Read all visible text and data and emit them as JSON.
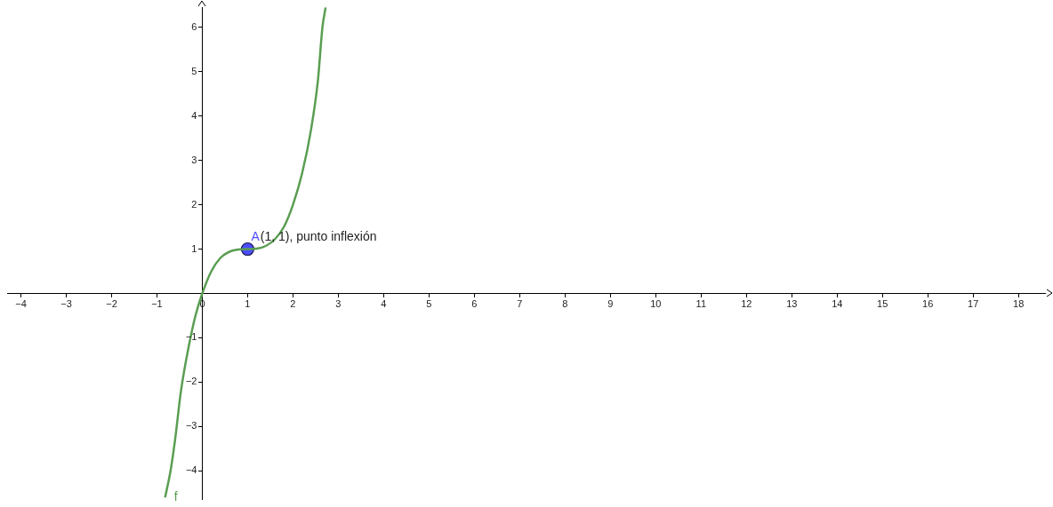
{
  "chart_data": {
    "type": "line",
    "xlim": [
      -4.3,
      18.6
    ],
    "ylim": [
      -4.65,
      6.45
    ],
    "xticks": [
      -4,
      -3,
      -2,
      -1,
      0,
      1,
      2,
      3,
      4,
      5,
      6,
      7,
      8,
      9,
      10,
      11,
      12,
      13,
      14,
      15,
      16,
      17,
      18
    ],
    "yticks": [
      -4,
      -3,
      -2,
      -1,
      1,
      2,
      3,
      4,
      5,
      6
    ],
    "grid": false,
    "legend": false,
    "marker": "none",
    "line_style": "solid",
    "series": [
      {
        "name": "f",
        "color": "#5a9e52",
        "x": [
          -0.82,
          -0.7,
          -0.6,
          -0.47,
          -0.3,
          -0.15,
          0,
          0.2,
          0.4,
          0.6,
          0.8,
          1,
          1.2,
          1.4,
          1.6,
          1.8,
          2,
          2.2,
          2.4,
          2.55,
          2.65,
          2.72
        ],
        "values": [
          -4.6,
          -4,
          -3.3,
          -2.2,
          -1.2,
          -0.5,
          0,
          0.5,
          0.8,
          0.94,
          0.99,
          1,
          1.01,
          1.07,
          1.22,
          1.5,
          2,
          2.7,
          3.7,
          4.8,
          6,
          6.45
        ]
      },
      {
        "name": "A",
        "type": "scatter",
        "marker": "circle",
        "color": "#4d4dff",
        "x": [
          1
        ],
        "values": [
          1
        ]
      }
    ],
    "annotations": [
      {
        "text": "(1, 1), punto inflexión",
        "x": 1,
        "y": 1
      }
    ]
  }
}
